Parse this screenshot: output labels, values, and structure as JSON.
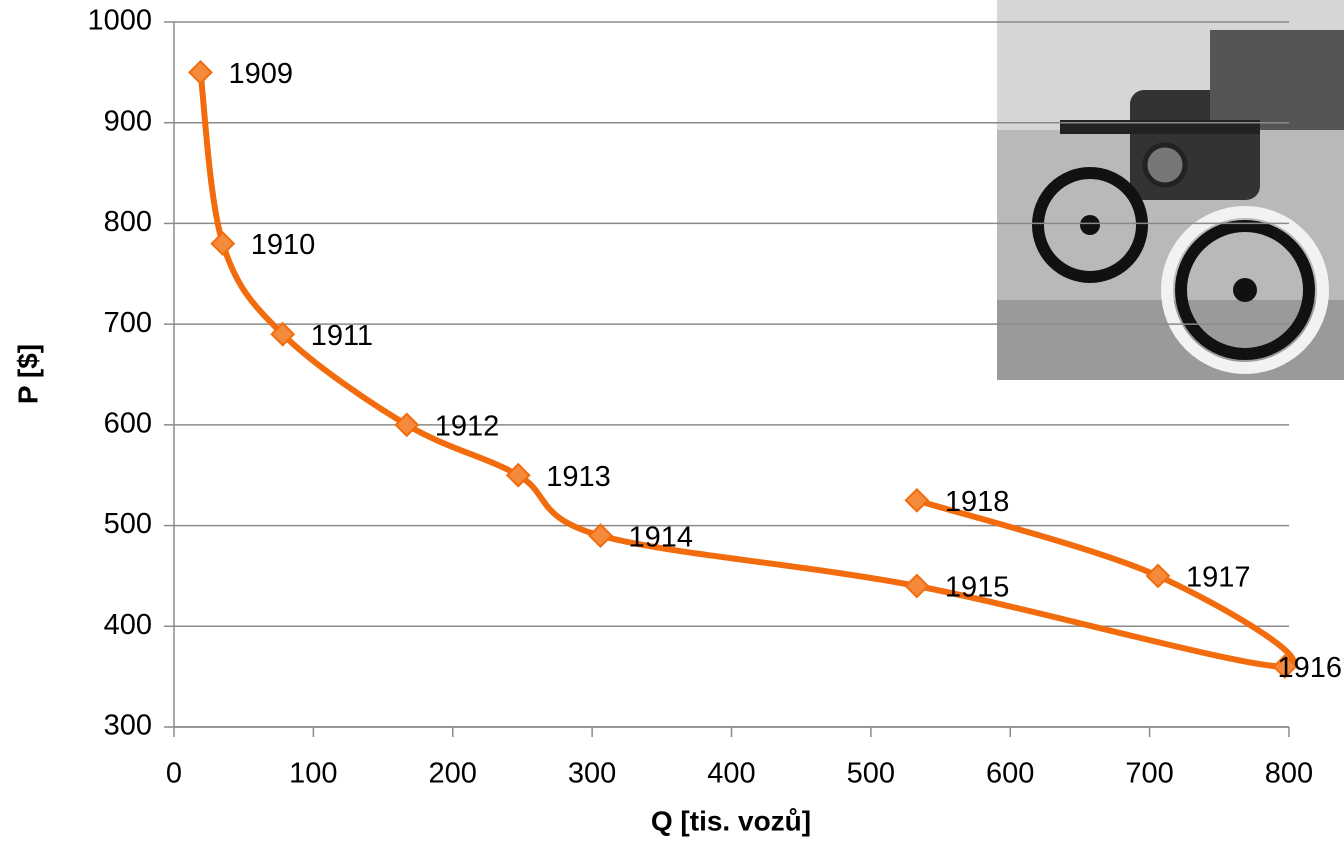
{
  "chart_data": {
    "type": "line",
    "x_label": "Q [tis. vozů]",
    "y_label": "P [$]",
    "point_labels": [
      "1909",
      "1910",
      "1911",
      "1912",
      "1913",
      "1914",
      "1915",
      "1916",
      "1917",
      "1918"
    ],
    "x": [
      19,
      35,
      78,
      167,
      247,
      306,
      533,
      797,
      706,
      533
    ],
    "values": [
      950,
      780,
      690,
      600,
      550,
      490,
      440,
      360,
      450,
      525
    ],
    "color": "#f26c0d",
    "marker_color": "#f58a3c",
    "xlim": [
      0,
      800
    ],
    "xticks": [
      0,
      100,
      200,
      300,
      400,
      500,
      600,
      700,
      800
    ],
    "ylim": [
      300,
      1000
    ],
    "yticks": [
      300,
      400,
      500,
      600,
      700,
      800,
      900,
      1000
    ],
    "grid": true
  }
}
